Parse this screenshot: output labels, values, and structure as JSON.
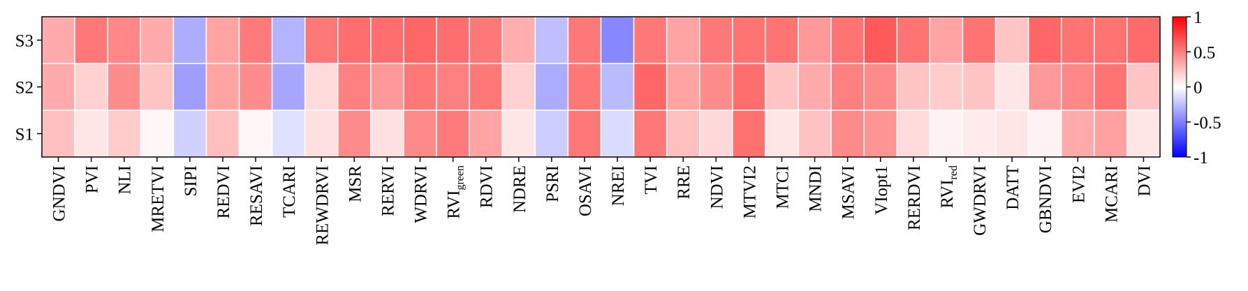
{
  "chart_data": {
    "type": "heatmap",
    "title": "",
    "xlabel": "",
    "ylabel": "",
    "rows": [
      "S3",
      "S2",
      "S1"
    ],
    "columns": [
      {
        "label": "GNDVI"
      },
      {
        "label": "PVI"
      },
      {
        "label": "NLI"
      },
      {
        "label": "MRETVI"
      },
      {
        "label": "SIPI"
      },
      {
        "label": "REDVI"
      },
      {
        "label": "RESAVI"
      },
      {
        "label": "TCARI"
      },
      {
        "label": "REWDRVI"
      },
      {
        "label": "MSR"
      },
      {
        "label": "RERVI"
      },
      {
        "label": "WDRVI"
      },
      {
        "label": "RVI",
        "subscript": "green"
      },
      {
        "label": "RDVI"
      },
      {
        "label": "NDRE"
      },
      {
        "label": "PSRI"
      },
      {
        "label": "OSAVI"
      },
      {
        "label": "NREI"
      },
      {
        "label": "TVI"
      },
      {
        "label": "RRE"
      },
      {
        "label": "NDVI"
      },
      {
        "label": "MTVI2"
      },
      {
        "label": "MTCI"
      },
      {
        "label": "MNDI"
      },
      {
        "label": "MSAVI"
      },
      {
        "label": "VIopt1"
      },
      {
        "label": "RERDVI"
      },
      {
        "label": "RVI",
        "subscript": "red"
      },
      {
        "label": "GWDRVI"
      },
      {
        "label": "DATT"
      },
      {
        "label": "GBNDVI"
      },
      {
        "label": "EVI2"
      },
      {
        "label": "MCARI"
      },
      {
        "label": "DVI"
      }
    ],
    "values": [
      [
        0.33,
        0.53,
        0.47,
        0.33,
        -0.32,
        0.36,
        0.52,
        -0.3,
        0.53,
        0.57,
        0.57,
        0.6,
        0.57,
        0.53,
        0.32,
        -0.25,
        0.53,
        -0.47,
        0.53,
        0.36,
        0.53,
        0.55,
        0.55,
        0.4,
        0.55,
        0.65,
        0.55,
        0.36,
        0.55,
        0.23,
        0.6,
        0.55,
        0.55,
        0.58
      ],
      [
        0.33,
        0.18,
        0.45,
        0.23,
        -0.38,
        0.36,
        0.45,
        -0.35,
        0.14,
        0.5,
        0.4,
        0.53,
        0.5,
        0.53,
        0.18,
        -0.33,
        0.53,
        -0.27,
        0.6,
        0.36,
        0.45,
        0.57,
        0.23,
        0.33,
        0.5,
        0.46,
        0.23,
        0.2,
        0.23,
        0.1,
        0.4,
        0.47,
        0.55,
        0.23
      ],
      [
        0.25,
        0.1,
        0.2,
        0.03,
        -0.18,
        0.25,
        0.03,
        -0.12,
        0.12,
        0.45,
        0.12,
        0.46,
        0.52,
        0.36,
        0.1,
        -0.2,
        0.53,
        -0.14,
        0.53,
        0.25,
        0.15,
        0.56,
        0.1,
        0.24,
        0.46,
        0.42,
        0.14,
        0.05,
        0.08,
        0.1,
        0.05,
        0.33,
        0.37,
        0.1
      ]
    ],
    "colorbar": {
      "range": [
        -1,
        1
      ],
      "ticks": [
        "1",
        "0.5",
        "0",
        "-0.5",
        "-1"
      ],
      "tick_values": [
        1,
        0.5,
        0,
        -0.5,
        -1
      ],
      "colors": {
        "negative": "#0000ff",
        "zero": "#ffffff",
        "positive": "#ff0000"
      }
    }
  }
}
